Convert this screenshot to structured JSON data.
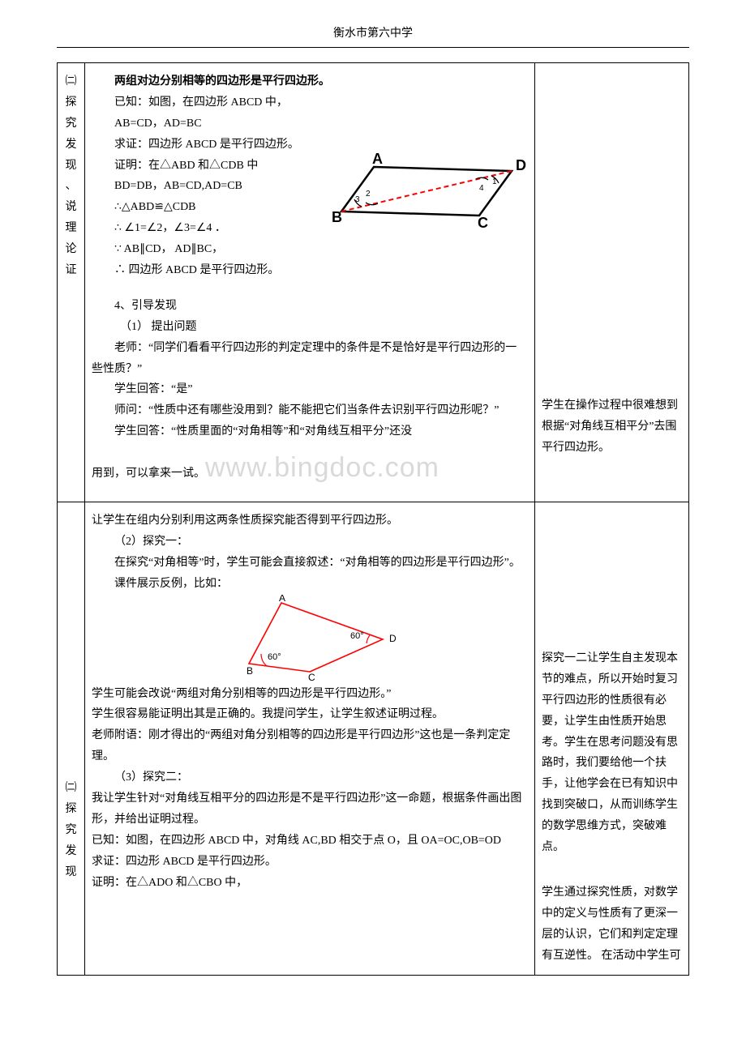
{
  "header": "衡水市第六中学",
  "row1": {
    "leftLabel": "㈡探究发现、说理论证",
    "title": "两组对边分别相等的四边形是平行四边形。",
    "lines": [
      "已知：如图，在四边形 ABCD 中，",
      "AB=CD，AD=BC",
      "求证：四边形 ABCD 是平行四边形。",
      "证明：在△ABD 和△CDB 中",
      "  BD=DB，AB=CD,AD=CB",
      "  ∴△ABD≌△CDB",
      "  ∴ ∠1=∠2，∠3=∠4 ．",
      "  ∵ AB∥CD， AD∥BC，",
      "  ∴ 四边形 ABCD 是平行四边形。"
    ],
    "discover": {
      "h": "4、引导发现",
      "sub1": "（1）  提出问题",
      "t1": "老师：“同学们看看平行四边形的判定定理中的条件是不是恰好是平行四边形的一些性质？”",
      "t2": "学生回答：“是”",
      "t3": "师问：“性质中还有哪些没用到？能不能把它们当条件去识别平行四边形呢？”",
      "t4a": "学生回答：“性质里面的“对角相等”和“对角线互相平分”还没",
      "t4b_pre": "用到，可以拿来一试。",
      "wm": "www.bingdoc.com"
    },
    "right": "    学生在操作过程中很难想到根据“对角线互相平分”去围平行四边形。",
    "diagram1": {
      "labels": {
        "A": "A",
        "B": "B",
        "C": "C",
        "D": "D",
        "n1": "1",
        "n2": "2",
        "n3": "3",
        "n4": "4"
      },
      "lineColor": "#000000",
      "dashColor": "#ff0000",
      "bold": true
    }
  },
  "row2": {
    "leftLabel": "㈡探究发现",
    "pre": "    让学生在组内分别利用这两条性质探究能否得到平行四边形。",
    "sub2": "（2）探究一：",
    "t1": "在探究“对角相等”时，学生可能会直接叙述：“对角相等的四边形是平行四边形”。",
    "t2": "课件展示反例，比如：",
    "t3": "学生可能会改说“两组对角分别相等的四边形是平行四边形。”",
    "t4": "    学生很容易能证明出其是正确的。我提问学生，让学生叙述证明过程。",
    "t5": "    老师附语：刚才得出的“两组对角分别相等的四边形是平行四边形”这也是一条判定定理。",
    "sub3": "（3）探究二：",
    "t6": "    我让学生针对“对角线互相平分的四边形是不是平行四边形”这一命题，根据条件画出图形，并给出证明过程。",
    "t7": "    已知：如图，在四边形 ABCD 中，对角线 AC,BD 相交于点 O，且 OA=OC,OB=OD",
    "t8": "    求证：四边形 ABCD 是平行四边形。",
    "t9": "    证明：在△ADO 和△CBO 中，",
    "right1": "    探究一二让学生自主发现本节的难点，所以开始时复习平行四边形的性质很有必要，让学生由性质开始思考。学生在思考问题没有思路时，我们要给他一个扶手，让他学会在已有知识中找到突破口，从而训练学生的数学思维方式，突破难点。",
    "right2": "    学生通过探究性质，对数学中的定义与性质有了更深一层的认识，它们和判定定理有互逆性。  在活动中学生可",
    "diagram2": {
      "labels": {
        "A": "A",
        "B": "B",
        "C": "C",
        "D": "D",
        "ang": "60°"
      },
      "lineColor": "#ff0000",
      "textColor": "#000000"
    }
  }
}
